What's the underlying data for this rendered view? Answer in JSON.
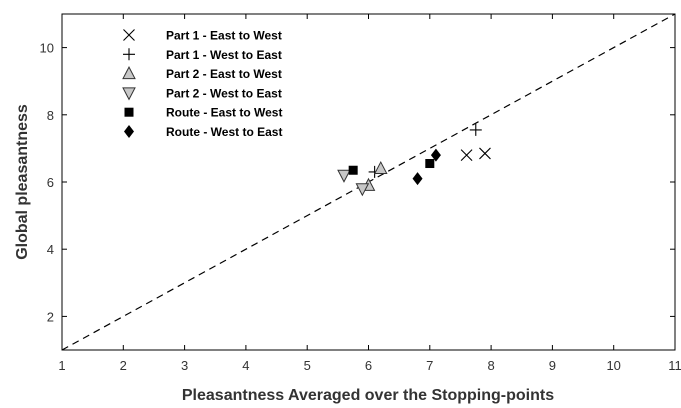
{
  "chart_data": {
    "type": "scatter",
    "title": "",
    "xlabel": "Pleasantness Averaged over the Stopping-points",
    "ylabel": "Global pleasantness",
    "xlim": [
      1,
      11
    ],
    "ylim": [
      1,
      11
    ],
    "xticks": [
      1,
      2,
      3,
      4,
      5,
      6,
      7,
      8,
      9,
      10,
      11
    ],
    "yticks": [
      2,
      4,
      6,
      8,
      10
    ],
    "grid": false,
    "legend_position": "top-left",
    "reference_line": {
      "type": "identity",
      "style": "dashed"
    },
    "series": [
      {
        "name": "Part 1 - East to West",
        "marker": "x",
        "color": "#000000",
        "points": [
          [
            7.6,
            6.8
          ],
          [
            7.9,
            6.85
          ]
        ]
      },
      {
        "name": "Part 1 - West to East",
        "marker": "plus",
        "color": "#000000",
        "points": [
          [
            7.75,
            7.55
          ],
          [
            6.1,
            6.3
          ]
        ]
      },
      {
        "name": "Part 2 - East to West",
        "marker": "triangle-up",
        "color": "#c8c8c8",
        "points": [
          [
            6.2,
            6.4
          ],
          [
            6.0,
            5.9
          ]
        ]
      },
      {
        "name": "Part 2 - West to East",
        "marker": "triangle-down",
        "color": "#c8c8c8",
        "points": [
          [
            5.6,
            6.2
          ],
          [
            5.9,
            5.8
          ]
        ]
      },
      {
        "name": "Route - East to West",
        "marker": "square",
        "color": "#000000",
        "points": [
          [
            5.75,
            6.35
          ],
          [
            7.0,
            6.55
          ]
        ]
      },
      {
        "name": "Route - West to East",
        "marker": "diamond",
        "color": "#000000",
        "points": [
          [
            6.8,
            6.1
          ],
          [
            7.1,
            6.8
          ]
        ]
      }
    ]
  }
}
